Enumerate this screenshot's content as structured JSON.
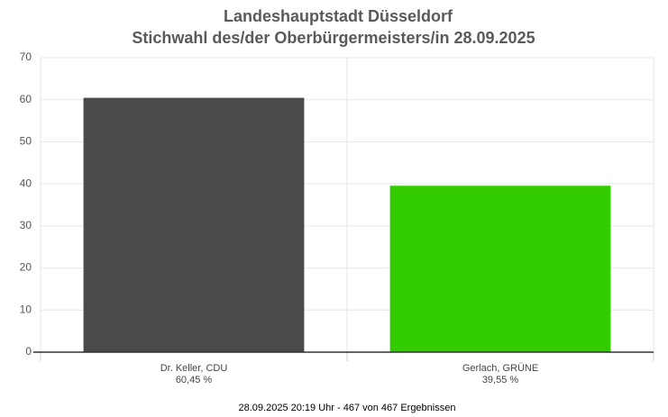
{
  "chart_data": {
    "type": "bar",
    "title": "Landeshauptstadt Düsseldorf",
    "subtitle": "Stichwahl des/der Oberbürgermeisters/in 28.09.2025",
    "categories": [
      "Dr. Keller, CDU",
      "Gerlach, GRÜNE"
    ],
    "values": [
      60.45,
      39.55
    ],
    "value_labels": [
      "60,45 %",
      "39,55 %"
    ],
    "colors": [
      "#4a4a4a",
      "#33cc00"
    ],
    "ylim": [
      0,
      70
    ],
    "yticks": [
      0,
      10,
      20,
      30,
      40,
      50,
      60,
      70
    ],
    "grid": true,
    "caption": "28.09.2025 20:19 Uhr - 467 von 467 Ergebnissen"
  }
}
